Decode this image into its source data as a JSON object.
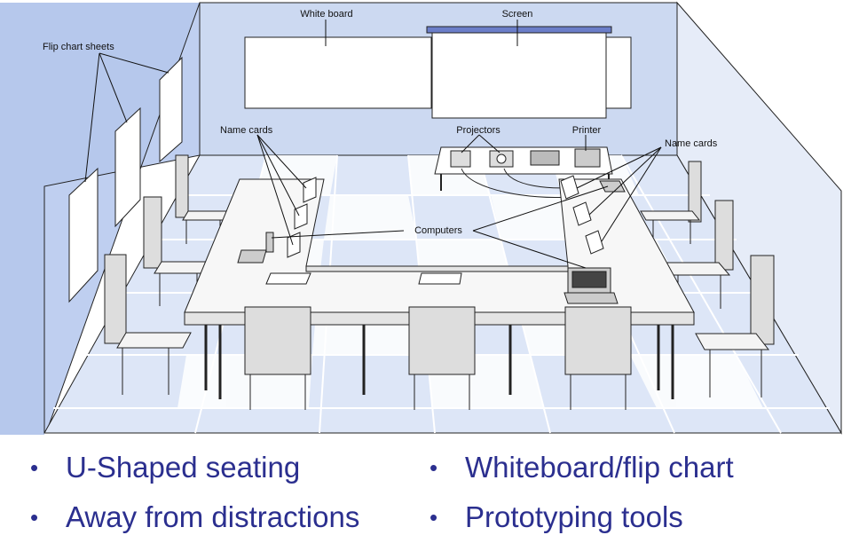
{
  "labels": {
    "white_board": "White board",
    "screen": "Screen",
    "flip_chart_sheets": "Flip chart sheets",
    "name_cards_left": "Name cards",
    "projectors": "Projectors",
    "printer": "Printer",
    "name_cards_right": "Name cards",
    "computers": "Computers"
  },
  "bullets": {
    "dot": "•",
    "items": [
      "U-Shaped seating",
      "Away from distractions",
      "Whiteboard/flip chart",
      "Prototyping tools"
    ]
  },
  "colors": {
    "bullet_text": "#2b2f8f",
    "wall": "#c9d6f0",
    "floor_tile": "#c5d3f1",
    "line": "#222222"
  }
}
